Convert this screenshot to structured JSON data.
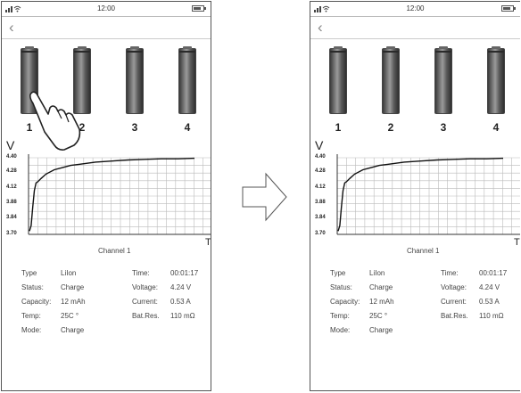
{
  "status_bar": {
    "time": "12:00",
    "signal_icon": "signal-wifi-icon",
    "battery_icon": "battery-icon"
  },
  "nav": {
    "back_icon": "chevron-left-icon",
    "back_glyph": "‹"
  },
  "channels": [
    {
      "label": "1"
    },
    {
      "label": "2"
    },
    {
      "label": "3"
    },
    {
      "label": "4"
    }
  ],
  "chart": {
    "title": "Channel 1",
    "y_axis_label": "V",
    "x_axis_label": "T"
  },
  "chart_data": {
    "type": "line",
    "title": "Channel 1",
    "xlabel": "T",
    "ylabel": "V",
    "ylim": [
      3.7,
      4.4
    ],
    "yticks": [
      "4.40",
      "4.28",
      "4.12",
      "3.88",
      "3.84",
      "3.70"
    ],
    "grid": true,
    "series": [
      {
        "x": [
          0,
          1,
          2,
          3,
          4,
          5,
          7,
          10,
          15,
          20,
          25,
          30,
          40,
          50,
          60,
          70,
          80,
          90,
          100
        ],
        "y": [
          3.73,
          3.78,
          3.95,
          4.1,
          4.17,
          4.18,
          4.21,
          4.25,
          4.29,
          4.31,
          4.33,
          4.34,
          4.36,
          4.37,
          4.38,
          4.385,
          4.39,
          4.39,
          4.395
        ]
      }
    ]
  },
  "info": {
    "type_label": "Type",
    "type_value": "LiIon",
    "status_label": "Status:",
    "status_value": "Charge",
    "capacity_label": "Capacity:",
    "capacity_value": "12 mAh",
    "temp_label": "Temp:",
    "temp_value": "25C °",
    "mode_label": "Mode:",
    "mode_value": "Charge",
    "time_label": "Time:",
    "time_value": "00:01:17",
    "voltage_label": "Voltage:",
    "voltage_value": "4.24 V",
    "current_label": "Current:",
    "current_value": "0.53 A",
    "batres_label": "Bat.Res.",
    "batres_value": "110 mΩ"
  },
  "annotations": {
    "gesture_icon": "tap-hand-icon",
    "transition_icon": "right-arrow-icon"
  }
}
